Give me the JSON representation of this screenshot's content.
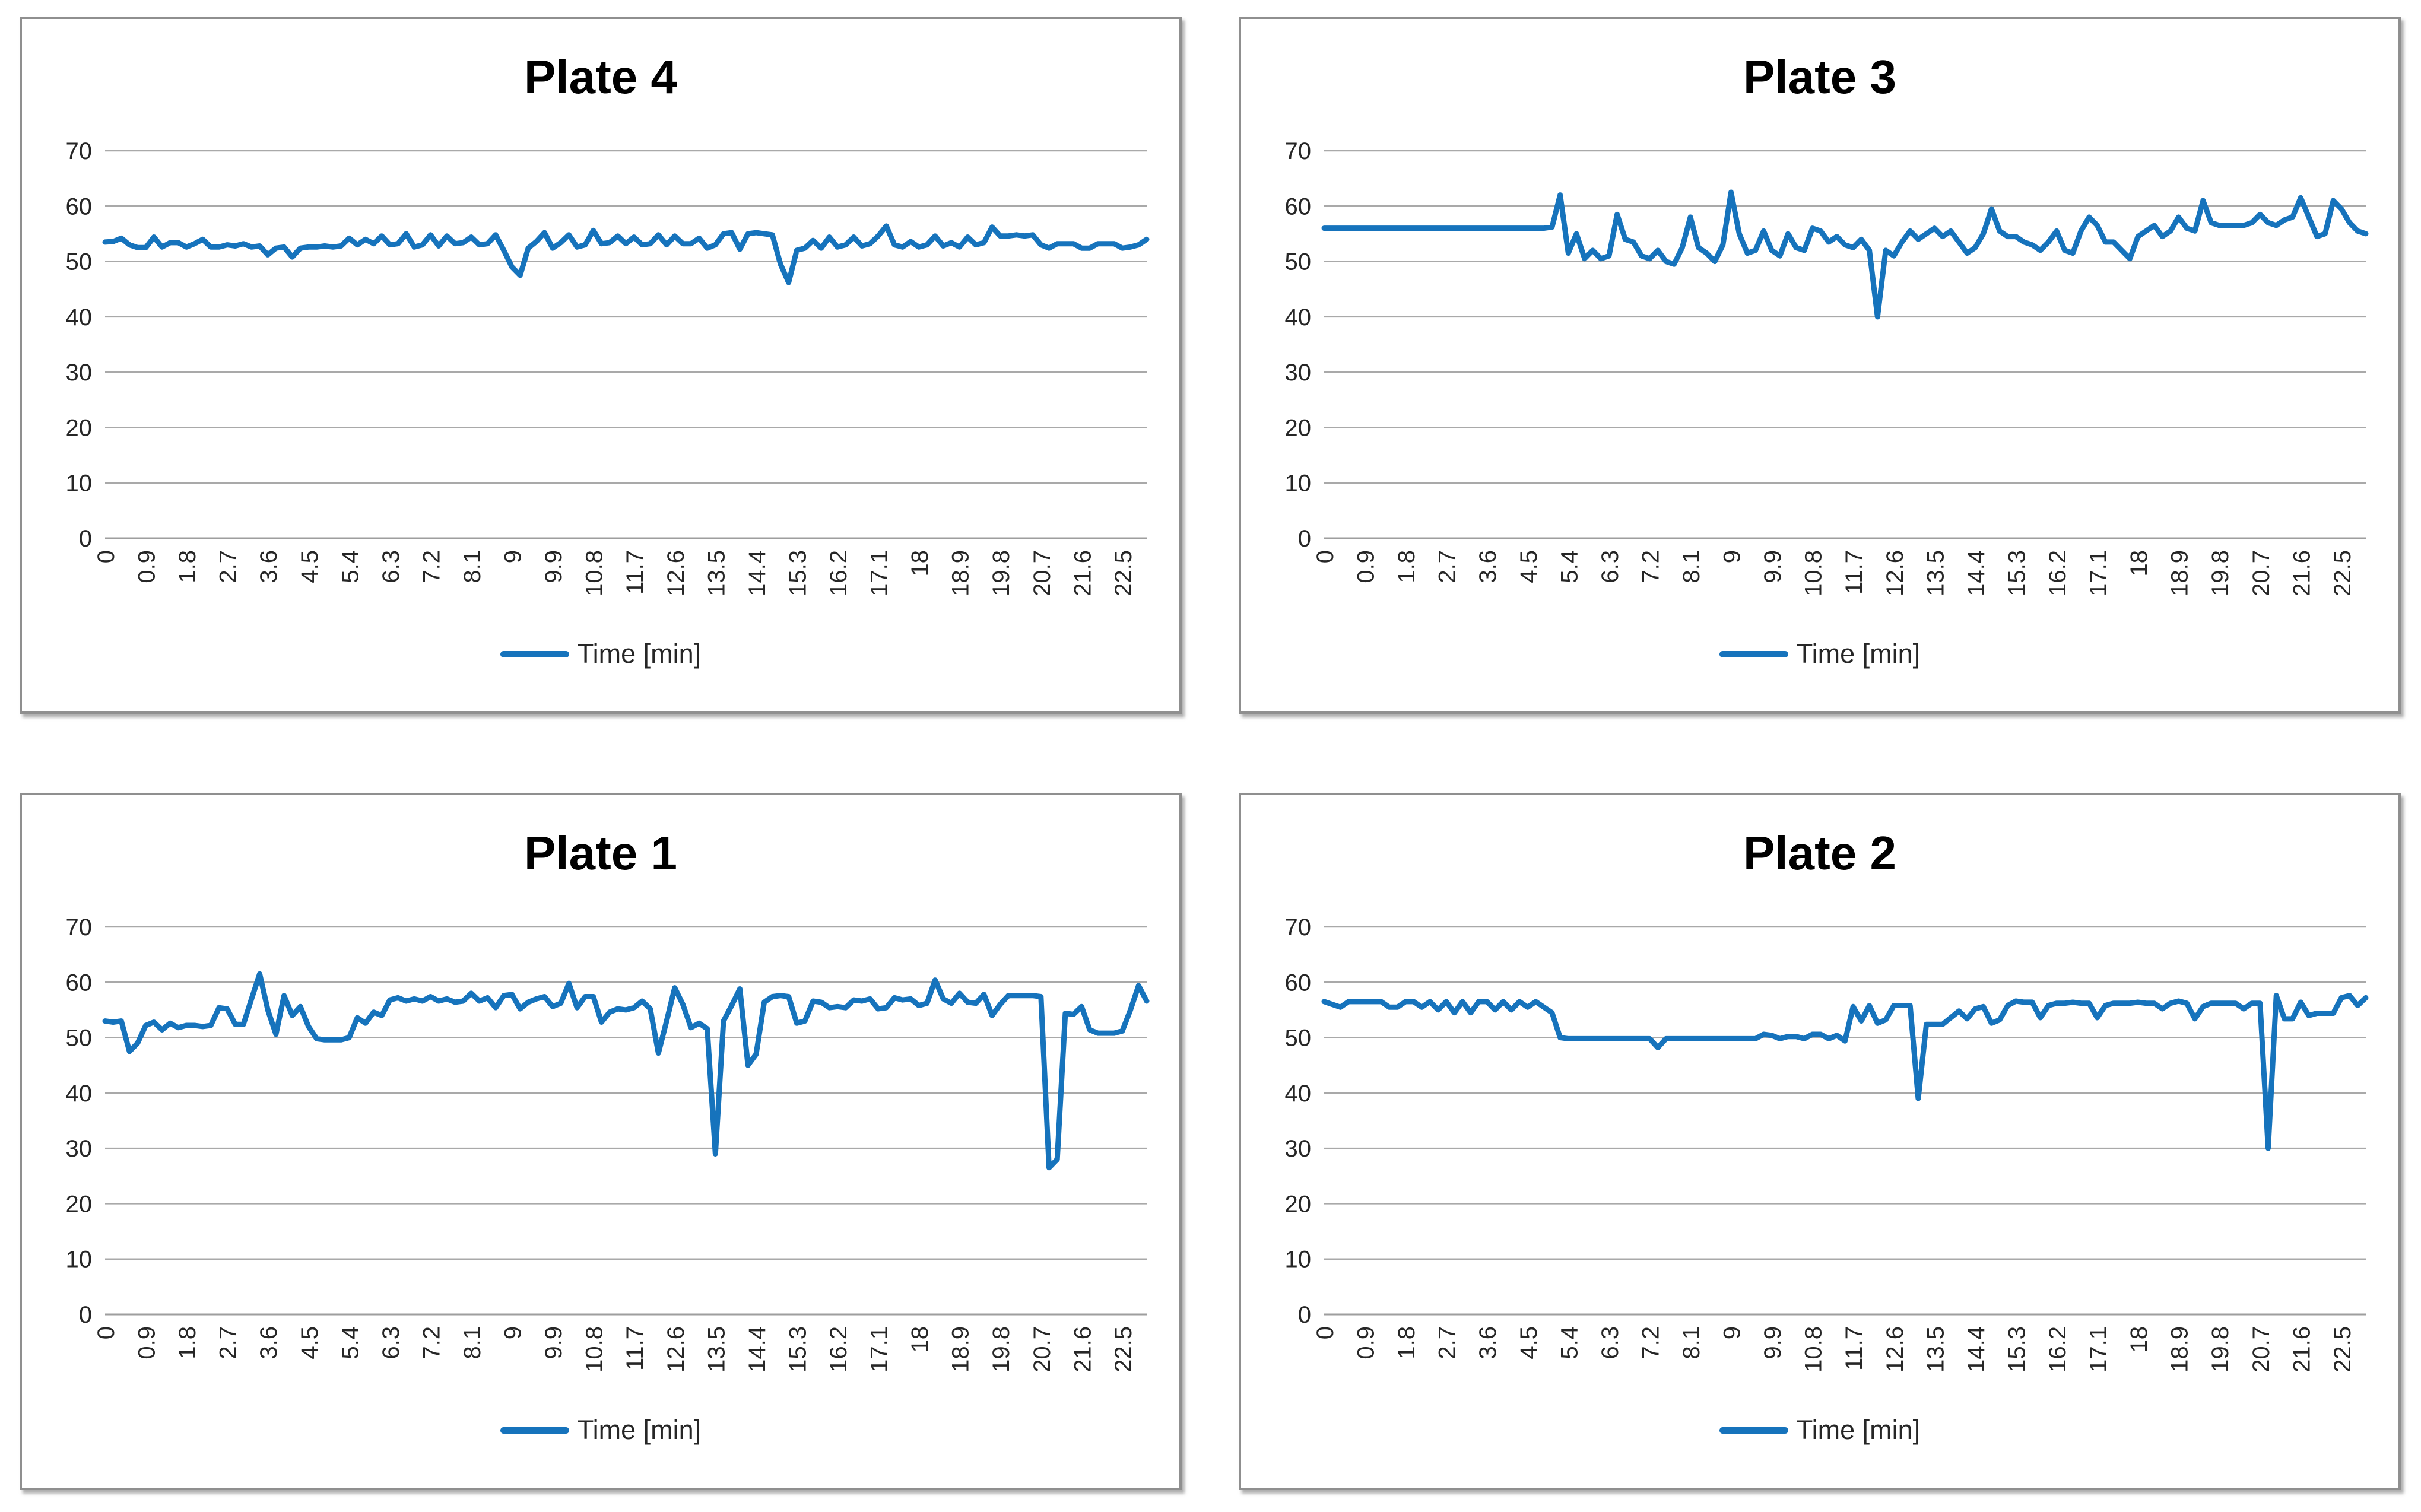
{
  "styles": {
    "line_color": "#1673bc",
    "grid_color": "#a9a9a9",
    "axis_color": "#9e9e9e",
    "text_color": "#262626",
    "title_color": "#000000",
    "panel_border_color": "#8f8f8f",
    "background": "#ffffff"
  },
  "chart_data": [
    {
      "type": "line",
      "title": "Plate 4",
      "legend": "Time [min]",
      "legend_position": "bottom",
      "grid": true,
      "ylim": [
        0,
        70
      ],
      "y_ticks": [
        0,
        10,
        20,
        30,
        40,
        50,
        60,
        70
      ],
      "x_tick_labels": [
        "0",
        "0.9",
        "1.8",
        "2.7",
        "3.6",
        "4.5",
        "5.4",
        "6.3",
        "7.2",
        "8.1",
        "9",
        "9.9",
        "10.8",
        "11.7",
        "12.6",
        "13.5",
        "14.4",
        "15.3",
        "16.2",
        "17.1",
        "18",
        "18.9",
        "19.8",
        "20.7",
        "21.6",
        "22.5"
      ],
      "x_start": 0,
      "x_step": 0.18,
      "values": [
        53.5,
        53.6,
        54.2,
        53.0,
        52.5,
        52.5,
        54.4,
        52.6,
        53.4,
        53.4,
        52.6,
        53.2,
        54.0,
        52.6,
        52.6,
        53.0,
        52.8,
        53.2,
        52.6,
        52.8,
        51.2,
        52.4,
        52.6,
        50.8,
        52.4,
        52.6,
        52.6,
        52.8,
        52.6,
        52.8,
        54.2,
        53.0,
        54.0,
        53.2,
        54.6,
        53.0,
        53.2,
        55.0,
        52.6,
        53.0,
        54.8,
        52.8,
        54.6,
        53.2,
        53.4,
        54.4,
        53.0,
        53.2,
        54.8,
        52.0,
        49.0,
        47.5,
        52.4,
        53.6,
        55.2,
        52.4,
        53.4,
        54.8,
        52.6,
        53.0,
        55.6,
        53.2,
        53.4,
        54.6,
        53.2,
        54.4,
        53.0,
        53.2,
        54.8,
        53.0,
        54.6,
        53.2,
        53.2,
        54.2,
        52.4,
        53.0,
        55.0,
        55.2,
        52.2,
        55.0,
        55.2,
        55.0,
        54.8,
        49.5,
        46.2,
        52.0,
        52.4,
        53.8,
        52.4,
        54.4,
        52.6,
        53.0,
        54.4,
        52.8,
        53.2,
        54.6,
        56.4,
        53.0,
        52.6,
        53.6,
        52.6,
        53.0,
        54.6,
        52.8,
        53.4,
        52.6,
        54.4,
        53.0,
        53.4,
        56.2,
        54.6,
        54.6,
        54.8,
        54.6,
        54.8,
        53.0,
        52.4,
        53.2,
        53.2,
        53.2,
        52.4,
        52.4,
        53.2,
        53.2,
        53.2,
        52.4,
        52.6,
        53.0,
        54.0
      ]
    },
    {
      "type": "line",
      "title": "Plate 3",
      "legend": "Time [min]",
      "legend_position": "bottom",
      "grid": true,
      "ylim": [
        0,
        70
      ],
      "y_ticks": [
        0,
        10,
        20,
        30,
        40,
        50,
        60,
        70
      ],
      "x_tick_labels": [
        "0",
        "0.9",
        "1.8",
        "2.7",
        "3.6",
        "4.5",
        "5.4",
        "6.3",
        "7.2",
        "8.1",
        "9",
        "9.9",
        "10.8",
        "11.7",
        "12.6",
        "13.5",
        "14.4",
        "15.3",
        "16.2",
        "17.1",
        "18",
        "18.9",
        "19.8",
        "20.7",
        "21.6",
        "22.5"
      ],
      "x_start": 0,
      "x_step": 0.18,
      "values": [
        56,
        56,
        56,
        56,
        56,
        56,
        56,
        56,
        56,
        56,
        56,
        56,
        56,
        56,
        56,
        56,
        56,
        56,
        56,
        56,
        56,
        56,
        56,
        56,
        56,
        56,
        56,
        56,
        56.2,
        62.0,
        51.5,
        55.0,
        50.5,
        52.0,
        50.5,
        51.0,
        58.5,
        54.0,
        53.5,
        51.0,
        50.5,
        52.0,
        50.0,
        49.5,
        52.5,
        58.0,
        52.5,
        51.5,
        50.0,
        53.0,
        62.5,
        55.0,
        51.5,
        52.0,
        55.5,
        52.0,
        51.0,
        55.0,
        52.5,
        52.0,
        56.0,
        55.5,
        53.5,
        54.5,
        53.0,
        52.5,
        54.0,
        52.0,
        40.0,
        52.0,
        51.0,
        53.5,
        55.5,
        54.0,
        55.0,
        56.0,
        54.5,
        55.5,
        53.5,
        51.5,
        52.5,
        55.0,
        59.5,
        55.5,
        54.5,
        54.5,
        53.5,
        53.0,
        52.0,
        53.5,
        55.5,
        52.0,
        51.5,
        55.5,
        58.0,
        56.5,
        53.5,
        53.5,
        52.0,
        50.5,
        54.5,
        55.5,
        56.5,
        54.5,
        55.5,
        58.0,
        56.0,
        55.5,
        61.0,
        57.0,
        56.5,
        56.5,
        56.5,
        56.5,
        57.0,
        58.5,
        57.0,
        56.5,
        57.5,
        58.0,
        61.5,
        58.0,
        54.5,
        55.0,
        61.0,
        59.5,
        57.0,
        55.5,
        55.0
      ]
    },
    {
      "type": "line",
      "title": "Plate 1",
      "legend": "Time [min]",
      "legend_position": "bottom",
      "grid": true,
      "ylim": [
        0,
        70
      ],
      "y_ticks": [
        0,
        10,
        20,
        30,
        40,
        50,
        60,
        70
      ],
      "x_tick_labels": [
        "0",
        "0.9",
        "1.8",
        "2.7",
        "3.6",
        "4.5",
        "5.4",
        "6.3",
        "7.2",
        "8.1",
        "9",
        "9.9",
        "10.8",
        "11.7",
        "12.6",
        "13.5",
        "14.4",
        "15.3",
        "16.2",
        "17.1",
        "18",
        "18.9",
        "19.8",
        "20.7",
        "21.6",
        "22.5"
      ],
      "x_start": 0,
      "x_step": 0.18,
      "values": [
        53.0,
        52.8,
        53.0,
        47.5,
        49.0,
        52.2,
        52.8,
        51.4,
        52.6,
        51.8,
        52.2,
        52.2,
        52.0,
        52.2,
        55.4,
        55.2,
        52.4,
        52.4,
        57.0,
        61.5,
        55.0,
        50.6,
        57.6,
        54.0,
        55.6,
        52.0,
        49.8,
        49.6,
        49.6,
        49.6,
        50.0,
        53.6,
        52.6,
        54.6,
        54.0,
        56.8,
        57.2,
        56.6,
        57.0,
        56.6,
        57.4,
        56.6,
        57.0,
        56.4,
        56.6,
        58.0,
        56.6,
        57.2,
        55.4,
        57.6,
        57.8,
        55.2,
        56.4,
        57.0,
        57.4,
        55.6,
        56.2,
        59.8,
        55.4,
        57.4,
        57.4,
        52.8,
        54.6,
        55.2,
        55.0,
        55.4,
        56.6,
        55.2,
        47.2,
        53.0,
        59.0,
        56.0,
        51.8,
        52.6,
        51.6,
        29.0,
        53.0,
        55.8,
        58.8,
        45.0,
        47.0,
        56.4,
        57.4,
        57.6,
        57.4,
        52.6,
        53.0,
        56.6,
        56.4,
        55.4,
        55.6,
        55.4,
        56.8,
        56.6,
        57.0,
        55.2,
        55.4,
        57.2,
        56.8,
        57.0,
        55.8,
        56.2,
        60.4,
        57.0,
        56.2,
        58.0,
        56.4,
        56.2,
        57.8,
        54.0,
        56.0,
        57.6,
        57.6,
        57.6,
        57.6,
        57.4,
        26.5,
        28.0,
        54.4,
        54.2,
        55.6,
        51.4,
        50.8,
        50.8,
        50.8,
        51.2,
        55.0,
        59.4,
        56.6
      ]
    },
    {
      "type": "line",
      "title": "Plate 2",
      "legend": "Time [min]",
      "legend_position": "bottom",
      "grid": true,
      "ylim": [
        0,
        70
      ],
      "y_ticks": [
        0,
        10,
        20,
        30,
        40,
        50,
        60,
        70
      ],
      "x_tick_labels": [
        "0",
        "0.9",
        "1.8",
        "2.7",
        "3.6",
        "4.5",
        "5.4",
        "6.3",
        "7.2",
        "8.1",
        "9",
        "9.9",
        "10.8",
        "11.7",
        "12.6",
        "13.5",
        "14.4",
        "15.3",
        "16.2",
        "17.1",
        "18",
        "18.9",
        "19.8",
        "20.7",
        "21.6",
        "22.5"
      ],
      "x_start": 0,
      "x_step": 0.18,
      "values": [
        56.5,
        56.0,
        55.5,
        56.5,
        56.5,
        56.5,
        56.5,
        56.5,
        55.5,
        55.5,
        56.5,
        56.5,
        55.5,
        56.5,
        55.0,
        56.5,
        54.5,
        56.5,
        54.5,
        56.5,
        56.5,
        55.0,
        56.5,
        55.0,
        56.5,
        55.5,
        56.5,
        55.5,
        54.5,
        50.0,
        49.8,
        49.8,
        49.8,
        49.8,
        49.8,
        49.8,
        49.8,
        49.8,
        49.8,
        49.8,
        49.8,
        48.2,
        49.8,
        49.8,
        49.8,
        49.8,
        49.8,
        49.8,
        49.8,
        49.8,
        49.8,
        49.8,
        49.8,
        49.8,
        50.6,
        50.4,
        49.8,
        50.2,
        50.2,
        49.8,
        50.6,
        50.6,
        49.8,
        50.4,
        49.4,
        55.6,
        53.0,
        55.8,
        52.6,
        53.2,
        55.8,
        55.8,
        55.8,
        39.0,
        52.4,
        52.4,
        52.4,
        53.6,
        54.8,
        53.4,
        55.2,
        55.6,
        52.6,
        53.2,
        55.8,
        56.6,
        56.4,
        56.4,
        53.6,
        55.8,
        56.2,
        56.2,
        56.4,
        56.2,
        56.2,
        53.6,
        55.8,
        56.2,
        56.2,
        56.2,
        56.4,
        56.2,
        56.2,
        55.2,
        56.2,
        56.6,
        56.2,
        53.4,
        55.6,
        56.2,
        56.2,
        56.2,
        56.2,
        55.2,
        56.2,
        56.2,
        30.0,
        57.6,
        53.4,
        53.4,
        56.4,
        54.0,
        54.4,
        54.4,
        54.4,
        57.2,
        57.6,
        55.8,
        57.2
      ]
    }
  ]
}
